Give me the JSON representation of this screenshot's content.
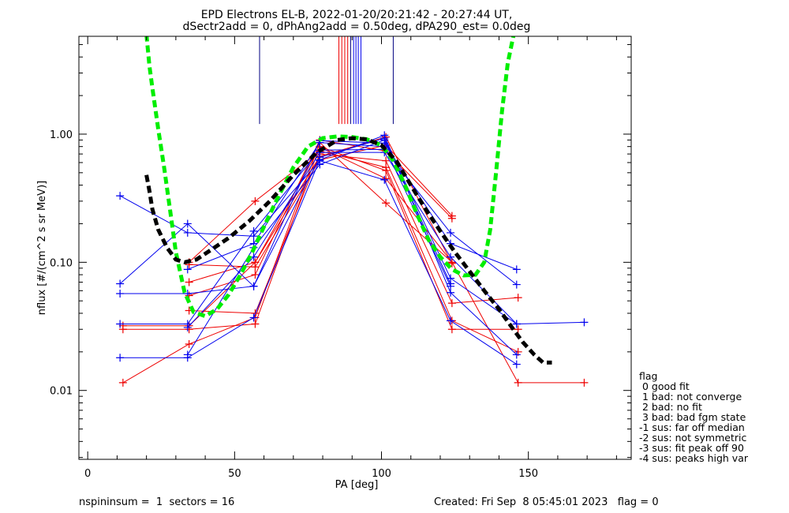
{
  "chart_data": {
    "type": "scatter",
    "title": "EPD Electrons EL-B, 2022-01-20/20:21:42 - 20:27:44 UT,",
    "subtitle": "dSectr2add = 0, dPhAng2add = 0.50deg, dPA290_est=   0.0deg",
    "xlabel": "PA [deg]",
    "ylabel": "nflux [#/(cm^2 s sr MeV)]",
    "xlim": [
      -3,
      185
    ],
    "ylim": [
      0.0029,
      5.8
    ],
    "y_scale": "log",
    "x_ticks": [
      0,
      50,
      100,
      150
    ],
    "y_ticks": [
      0.01,
      0.1,
      1.0
    ],
    "x_tick_labels": [
      "0",
      "50",
      "100",
      "150"
    ],
    "y_tick_labels": [
      "0.01",
      "0.10",
      "1.00"
    ],
    "colors": {
      "red": "#ee0000",
      "blue": "#0000ee",
      "fit_green": "#00ee00",
      "fit_black": "#000000",
      "marker": "#000080"
    },
    "series": [
      {
        "color": "#ee0000",
        "x": [
          12,
          34.5,
          57,
          79,
          101.5,
          124,
          146.5,
          169
        ],
        "y": [
          0.0115,
          0.023,
          0.037,
          0.86,
          0.29,
          0.1,
          0.0115,
          0.0115
        ]
      },
      {
        "color": "#ee0000",
        "x": [
          12,
          34.5,
          57,
          79,
          101.5,
          124,
          146.5
        ],
        "y": [
          0.03,
          0.03,
          0.033,
          0.8,
          0.52,
          0.03,
          0.03
        ]
      },
      {
        "color": "#ee0000",
        "x": [
          34.5,
          57,
          79,
          101.5,
          124,
          146.5
        ],
        "y": [
          0.1,
          0.3,
          0.74,
          0.55,
          0.035,
          0.02
        ]
      },
      {
        "color": "#ee0000",
        "x": [
          34.5,
          57,
          79,
          101.5,
          124
        ],
        "y": [
          0.055,
          0.08,
          0.9,
          0.74,
          0.22
        ]
      },
      {
        "color": "#ee0000",
        "x": [
          34.5,
          57,
          79,
          101.5,
          124
        ],
        "y": [
          0.096,
          0.092,
          0.63,
          0.82,
          0.23
        ]
      },
      {
        "color": "#ee0000",
        "x": [
          34.5,
          57,
          79,
          101.5,
          124,
          146.5
        ],
        "y": [
          0.042,
          0.04,
          0.7,
          0.62,
          0.048,
          0.053
        ]
      },
      {
        "color": "#ee0000",
        "x": [
          12,
          34.5,
          57,
          79,
          101.5,
          124
        ],
        "y": [
          0.032,
          0.032,
          0.1,
          0.79,
          0.45,
          0.1
        ]
      },
      {
        "color": "#ee0000",
        "x": [
          34.5,
          57,
          79,
          101.5,
          124
        ],
        "y": [
          0.07,
          0.1,
          0.67,
          0.95,
          0.098
        ]
      },
      {
        "color": "#0000ee",
        "x": [
          11,
          34,
          56.5,
          79,
          101,
          123.5,
          146
        ],
        "y": [
          0.33,
          0.17,
          0.16,
          0.62,
          0.44,
          0.035,
          0.016
        ]
      },
      {
        "color": "#0000ee",
        "x": [
          11,
          34,
          56.5,
          79,
          101,
          123.5,
          146
        ],
        "y": [
          0.068,
          0.2,
          0.065,
          0.89,
          0.85,
          0.14,
          0.088
        ]
      },
      {
        "color": "#0000ee",
        "x": [
          11,
          34,
          56.5,
          79,
          101,
          123.5,
          146,
          169
        ],
        "y": [
          0.057,
          0.057,
          0.065,
          0.66,
          0.93,
          0.075,
          0.033,
          0.034
        ]
      },
      {
        "color": "#0000ee",
        "x": [
          11,
          34,
          56.5,
          79,
          101,
          123.5,
          146
        ],
        "y": [
          0.018,
          0.018,
          0.037,
          0.63,
          0.98,
          0.058,
          0.019
        ]
      },
      {
        "color": "#0000ee",
        "x": [
          11,
          34,
          56.5,
          79,
          101,
          123.5,
          146
        ],
        "y": [
          0.033,
          0.033,
          0.175,
          0.75,
          0.76,
          0.17,
          0.067
        ]
      },
      {
        "color": "#0000ee",
        "x": [
          34,
          56.5,
          79,
          101,
          123.5
        ],
        "y": [
          0.088,
          0.14,
          0.86,
          0.8,
          0.065
        ]
      },
      {
        "color": "#0000ee",
        "x": [
          34,
          56.5,
          79,
          101,
          123.5
        ],
        "y": [
          0.019,
          0.13,
          0.58,
          0.9,
          0.068
        ]
      },
      {
        "color": "#0000ee",
        "x": [
          34,
          56.5,
          79,
          101,
          123.5,
          146
        ],
        "y": [
          0.031,
          0.11,
          0.72,
          0.72,
          0.11,
          0.033
        ]
      }
    ],
    "fits": [
      {
        "color": "#00ee00",
        "x": [
          20,
          21,
          22,
          24,
          26,
          28,
          30,
          33,
          36,
          40,
          44,
          48,
          52,
          56,
          60,
          65,
          70,
          75,
          80,
          85,
          90,
          95,
          100,
          104,
          108,
          112,
          116,
          120,
          124,
          128,
          132,
          135,
          137,
          139,
          141,
          143,
          145
        ],
        "y": [
          6.0,
          3.4,
          2.3,
          1.1,
          0.55,
          0.26,
          0.12,
          0.058,
          0.041,
          0.038,
          0.043,
          0.056,
          0.08,
          0.12,
          0.19,
          0.33,
          0.55,
          0.8,
          0.93,
          0.96,
          0.95,
          0.91,
          0.82,
          0.62,
          0.4,
          0.24,
          0.15,
          0.11,
          0.088,
          0.079,
          0.08,
          0.1,
          0.18,
          0.5,
          1.5,
          3.6,
          6.0
        ]
      },
      {
        "color": "#000000",
        "x": [
          20,
          21,
          22,
          24,
          27,
          30,
          33,
          37,
          42,
          48,
          55,
          62,
          70,
          78,
          85,
          90,
          95,
          100,
          105,
          110,
          115,
          120,
          125,
          130,
          135,
          140,
          144,
          148,
          152,
          155,
          158
        ],
        "y": [
          0.48,
          0.36,
          0.26,
          0.18,
          0.13,
          0.105,
          0.1,
          0.105,
          0.125,
          0.155,
          0.21,
          0.3,
          0.48,
          0.72,
          0.9,
          0.93,
          0.91,
          0.82,
          0.62,
          0.4,
          0.26,
          0.175,
          0.12,
          0.085,
          0.06,
          0.043,
          0.032,
          0.024,
          0.019,
          0.0165,
          0.0165
        ]
      }
    ],
    "markers": [
      {
        "color": "#000080",
        "x": 58.5,
        "y": 1.2
      },
      {
        "color": "#ee0000",
        "x": 85.5,
        "y": 1.2
      },
      {
        "color": "#ee0000",
        "x": 86.5,
        "y": 1.2
      },
      {
        "color": "#ee0000",
        "x": 87.5,
        "y": 1.2
      },
      {
        "color": "#ee0000",
        "x": 88.5,
        "y": 1.2
      },
      {
        "color": "#000080",
        "x": 89.5,
        "y": 1.2
      },
      {
        "color": "#0000ee",
        "x": 90.5,
        "y": 1.2
      },
      {
        "color": "#0000ee",
        "x": 91.3,
        "y": 1.2
      },
      {
        "color": "#0000ee",
        "x": 92.1,
        "y": 1.2
      },
      {
        "color": "#0000ee",
        "x": 93.0,
        "y": 1.2
      },
      {
        "color": "#000080",
        "x": 104.0,
        "y": 1.2
      }
    ]
  },
  "legend": {
    "title": "flag",
    "items": [
      " 0 good fit",
      " 1 bad: not converge",
      " 2 bad: no fit",
      " 3 bad: bad fgm state",
      "-1 sus: far off median",
      "-2 sus: not symmetric",
      "-3 sus: fit peak off 90",
      "-4 sus: peaks high var"
    ]
  },
  "footer": {
    "left": "nspininsum =  1  sectors = 16",
    "right": "Created: Fri Sep  8 05:45:01 2023   flag = 0"
  }
}
